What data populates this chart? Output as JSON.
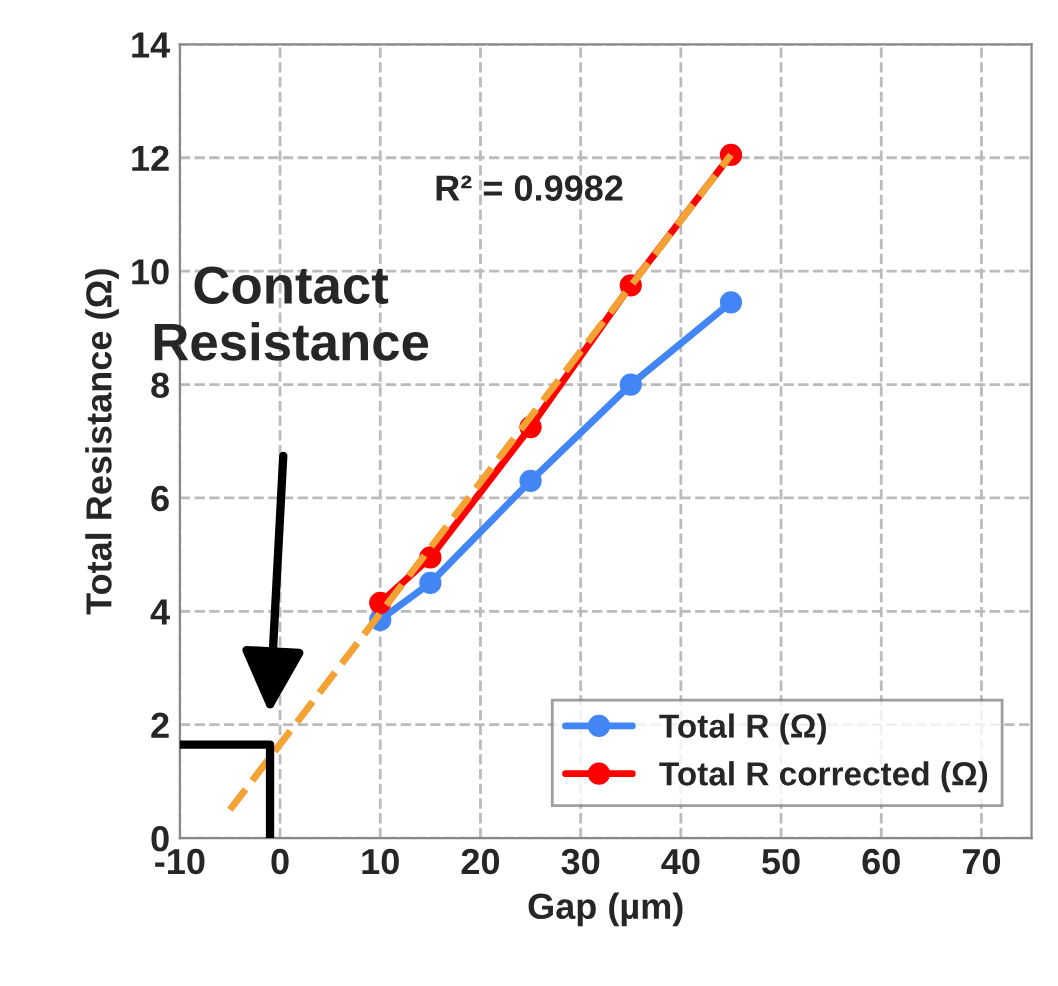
{
  "chart_data": {
    "type": "line",
    "xlabel": "Gap (µm)",
    "ylabel": "Total Resistance (Ω)",
    "xlim": [
      -10,
      75
    ],
    "xticks": [
      -10,
      0,
      10,
      20,
      30,
      40,
      50,
      60,
      70
    ],
    "ylim": [
      0,
      14
    ],
    "yticks": [
      0,
      2,
      4,
      6,
      8,
      10,
      12,
      14
    ],
    "grid": true,
    "legend": "bottom right",
    "marker": "circle",
    "line_style": "solid",
    "series": [
      {
        "name": "Total R (Ω)",
        "color": "#4285f4",
        "x": [
          10,
          15,
          25,
          35,
          45
        ],
        "values": [
          3.85,
          4.5,
          6.3,
          8.0,
          9.45
        ]
      },
      {
        "name": "Total R corrected (Ω)",
        "color": "#ff0000",
        "x": [
          10,
          15,
          25,
          35,
          45
        ],
        "values": [
          4.15,
          4.95,
          7.25,
          9.75,
          12.05
        ]
      },
      {
        "type": "line",
        "color": "#f4a234",
        "line_style": "dashed",
        "marker": "none",
        "x": [
          -5,
          45
        ],
        "values": [
          0.5,
          12.05
        ]
      },
      {
        "type": "line",
        "color": "#000000",
        "line_style": "solid",
        "marker": "none",
        "x": [
          -10,
          -1,
          -1
        ],
        "values": [
          1.65,
          1.65,
          0
        ]
      }
    ],
    "annotations": [
      "R² = 0.9982",
      "Contact\nResistance"
    ]
  }
}
